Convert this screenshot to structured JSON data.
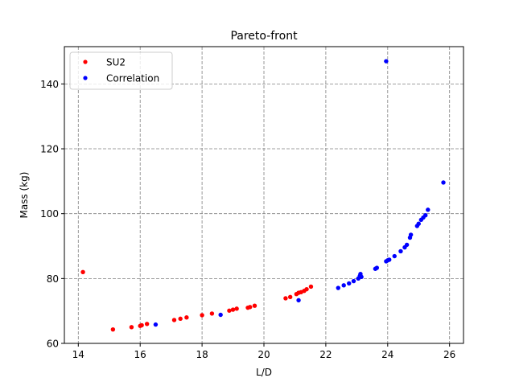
{
  "chart_data": {
    "type": "scatter",
    "title": "Pareto-front",
    "xlabel": "L/D",
    "ylabel": "Mass (kg)",
    "xlim": [
      13.55,
      26.45
    ],
    "ylim": [
      60,
      151.5
    ],
    "xticks": [
      14,
      16,
      18,
      20,
      22,
      24,
      26
    ],
    "yticks": [
      60,
      80,
      100,
      120,
      140
    ],
    "grid": true,
    "legend_position": "top-left",
    "series": [
      {
        "name": "SU2",
        "color": "#ff0000",
        "x": [
          14.15,
          15.12,
          15.72,
          16.0,
          16.05,
          16.22,
          17.1,
          17.3,
          17.5,
          18.0,
          18.32,
          18.88,
          19.0,
          19.12,
          19.48,
          19.55,
          19.7,
          20.7,
          20.85,
          21.05,
          21.12,
          21.2,
          21.3,
          21.38,
          21.52
        ],
        "y": [
          82.0,
          64.3,
          65.0,
          65.4,
          65.6,
          66.0,
          67.2,
          67.6,
          68.0,
          68.7,
          69.2,
          70.1,
          70.4,
          70.7,
          71.0,
          71.2,
          71.6,
          73.9,
          74.3,
          75.2,
          75.6,
          75.8,
          76.2,
          76.7,
          77.5
        ]
      },
      {
        "name": "Correlation",
        "color": "#0000ff",
        "x": [
          16.5,
          18.6,
          21.12,
          22.4,
          22.58,
          22.75,
          22.9,
          23.05,
          23.1,
          23.12,
          23.15,
          23.6,
          23.65,
          23.95,
          24.0,
          24.05,
          24.22,
          24.42,
          24.55,
          24.62,
          24.72,
          24.75,
          24.95,
          25.0,
          25.08,
          25.15,
          25.22,
          25.3,
          25.8,
          23.95
        ],
        "y": [
          65.8,
          68.8,
          73.3,
          77.1,
          77.9,
          78.5,
          79.2,
          80.0,
          80.8,
          81.4,
          80.5,
          83.0,
          83.3,
          85.3,
          85.6,
          85.8,
          86.9,
          88.4,
          89.6,
          90.4,
          92.6,
          93.5,
          96.2,
          96.9,
          98.1,
          98.8,
          99.5,
          101.2,
          109.6,
          147.0
        ]
      }
    ]
  }
}
